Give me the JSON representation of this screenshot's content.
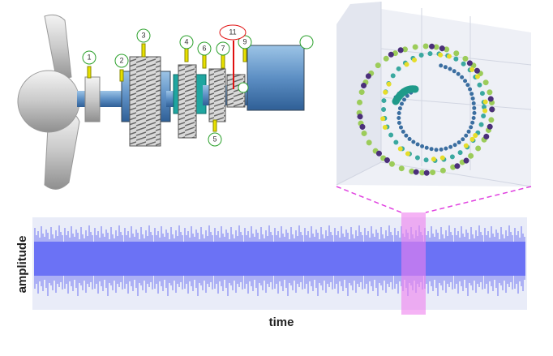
{
  "diagram": {
    "labels": [
      "1",
      "2",
      "3",
      "4",
      "5",
      "6",
      "7",
      "9",
      "11"
    ]
  },
  "plot": {
    "y_label": "amplitude",
    "x_label": "time"
  }
}
